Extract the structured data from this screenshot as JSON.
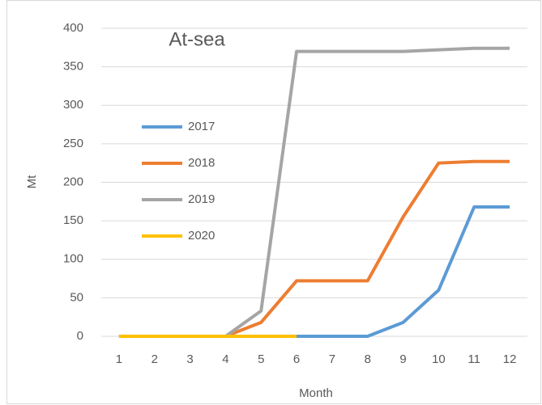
{
  "chart_data": {
    "type": "line",
    "title": "At-sea",
    "x_label": "Month",
    "y_label": "Mt",
    "categories": [
      "1",
      "2",
      "3",
      "4",
      "5",
      "6",
      "7",
      "8",
      "9",
      "10",
      "11",
      "12"
    ],
    "series": [
      {
        "name": "2017",
        "color": "#5b9bd5",
        "values": [
          0,
          0,
          0,
          0,
          0,
          0,
          0,
          0,
          18,
          60,
          168,
          168
        ]
      },
      {
        "name": "2018",
        "color": "#ed7d31",
        "values": [
          0,
          0,
          0,
          0,
          18,
          72,
          72,
          72,
          155,
          225,
          227,
          227
        ]
      },
      {
        "name": "2019",
        "color": "#a5a5a5",
        "values": [
          0,
          0,
          0,
          0,
          33,
          370,
          370,
          370,
          370,
          372,
          374,
          374
        ]
      },
      {
        "name": "2020",
        "color": "#ffc000",
        "values": [
          0,
          0,
          0,
          0,
          0,
          0,
          null,
          null,
          null,
          null,
          null,
          null
        ]
      }
    ],
    "ylim": [
      0,
      400
    ],
    "yticks": [
      0,
      50,
      100,
      150,
      200,
      250,
      300,
      350,
      400
    ],
    "grid": true,
    "legend": "left"
  }
}
